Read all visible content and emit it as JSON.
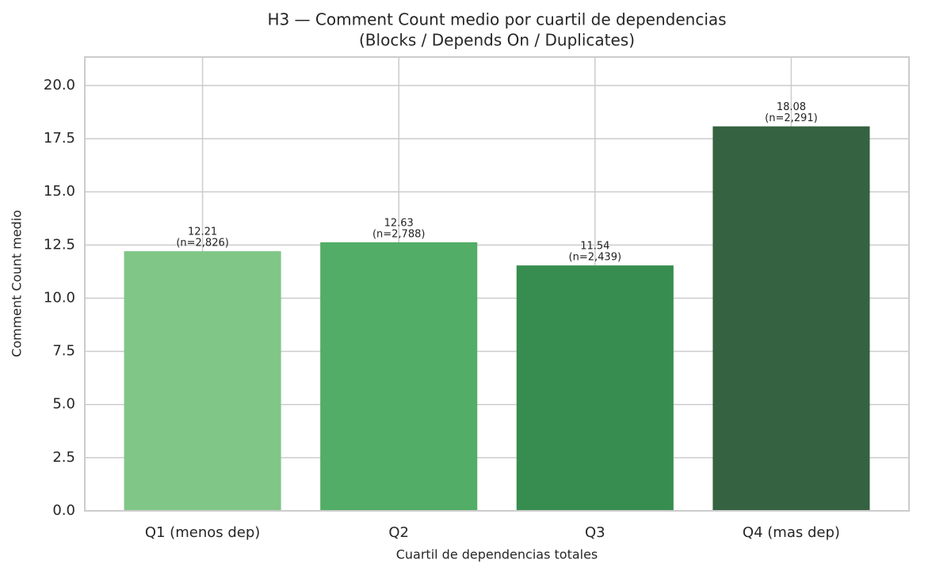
{
  "chart_data": {
    "type": "bar",
    "title": "H3 — Comment Count medio por cuartil de dependencias",
    "subtitle": "(Blocks / Depends On / Duplicates)",
    "x_label": "Cuartil de dependencias totales",
    "y_label": "Comment Count medio",
    "categories": [
      "Q1 (menos dep)",
      "Q2",
      "Q3",
      "Q4 (mas dep)"
    ],
    "values": [
      12.21,
      12.63,
      11.54,
      18.08
    ],
    "annotations": [
      "(n=2,826)",
      "(n=2,788)",
      "(n=2,439)",
      "(n=2,291)"
    ],
    "colors": [
      "#80c687",
      "#52ad66",
      "#378d4f",
      "#356241"
    ],
    "ylim": [
      0,
      21.34
    ],
    "yticks": [
      {
        "value": 0,
        "label": "0.0"
      },
      2.5,
      {
        "value": 5,
        "label": "5.0"
      },
      7.5,
      {
        "value": 10,
        "label": "10.0"
      },
      12.5,
      {
        "value": 15,
        "label": "15.0"
      },
      17.5,
      {
        "value": 20,
        "label": "20.0"
      }
    ],
    "grid": true
  }
}
